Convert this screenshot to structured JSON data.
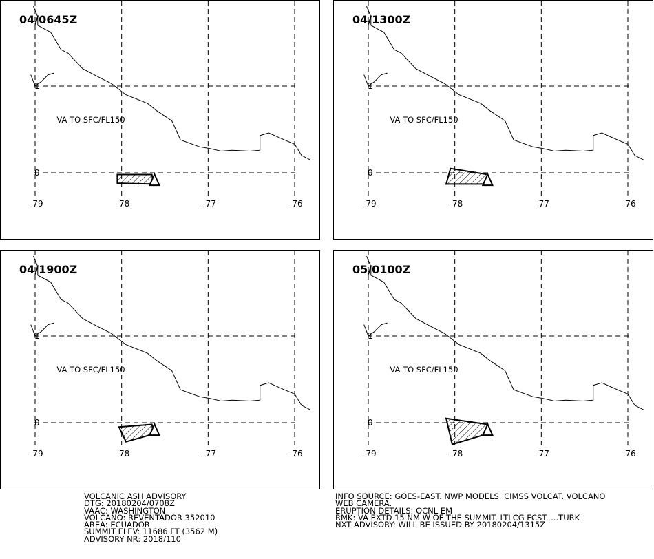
{
  "panels": [
    {
      "valid_time": "04/0645Z",
      "ash_label": "VA TO SFC/FL150",
      "ash_polygon": [
        [
          -78.05,
          -0.02
        ],
        [
          -77.65,
          -0.02
        ],
        [
          -77.63,
          -0.13
        ],
        [
          -78.05,
          -0.12
        ]
      ],
      "volcano_marker": [
        -77.62,
        -0.08
      ]
    },
    {
      "valid_time": "04/1300Z",
      "ash_label": "VA TO SFC/FL150",
      "ash_polygon": [
        [
          -78.05,
          0.05
        ],
        [
          -77.62,
          -0.02
        ],
        [
          -77.63,
          -0.13
        ],
        [
          -78.1,
          -0.13
        ]
      ],
      "volcano_marker": [
        -77.62,
        -0.08
      ]
    },
    {
      "valid_time": "04/1900Z",
      "ash_label": "VA TO SFC/FL150",
      "ash_polygon": [
        [
          -78.03,
          -0.05
        ],
        [
          -77.65,
          -0.02
        ],
        [
          -77.63,
          -0.13
        ],
        [
          -77.95,
          -0.22
        ]
      ],
      "volcano_marker": [
        -77.62,
        -0.08
      ]
    },
    {
      "valid_time": "05/0100Z",
      "ash_label": "VA TO SFC/FL150",
      "ash_polygon": [
        [
          -78.1,
          0.05
        ],
        [
          -77.62,
          -0.02
        ],
        [
          -77.63,
          -0.13
        ],
        [
          -78.03,
          -0.25
        ]
      ],
      "volcano_marker": [
        -77.62,
        -0.08
      ]
    }
  ],
  "map": {
    "lon_ticks": [
      -79,
      -78,
      -77,
      -76
    ],
    "lon_tick_labels": [
      "-79",
      "-78",
      "-77",
      "-76"
    ],
    "lat_ticks": [
      1,
      0
    ],
    "lat_tick_labels": [
      "1",
      "0"
    ],
    "lon_range": [
      -79.2,
      -75.5
    ],
    "lat_range": [
      -0.7,
      1.95
    ],
    "coastline": [
      [
        -79.02,
        1.92
      ],
      [
        -78.97,
        1.8
      ],
      [
        -78.97,
        1.7
      ],
      [
        -78.82,
        1.62
      ],
      [
        -78.7,
        1.42
      ],
      [
        -78.62,
        1.38
      ],
      [
        -78.45,
        1.2
      ],
      [
        -78.22,
        1.08
      ],
      [
        -78.12,
        1.03
      ],
      [
        -77.95,
        0.9
      ],
      [
        -77.7,
        0.8
      ],
      [
        -77.6,
        0.72
      ],
      [
        -77.42,
        0.6
      ],
      [
        -77.32,
        0.38
      ],
      [
        -77.1,
        0.3
      ],
      [
        -76.98,
        0.28
      ],
      [
        -76.85,
        0.25
      ],
      [
        -76.72,
        0.26
      ],
      [
        -76.52,
        0.25
      ],
      [
        -76.4,
        0.26
      ],
      [
        -76.4,
        0.43
      ],
      [
        -76.3,
        0.46
      ],
      [
        -76.12,
        0.38
      ],
      [
        -76.0,
        0.33
      ],
      [
        -75.92,
        0.2
      ],
      [
        -75.82,
        0.15
      ]
    ],
    "coast_spur": [
      [
        -79.05,
        1.13
      ],
      [
        -79.0,
        1.0
      ],
      [
        -78.93,
        1.05
      ],
      [
        -78.85,
        1.13
      ],
      [
        -78.78,
        1.15
      ]
    ],
    "label_anchor": [
      -78.75,
      0.58
    ]
  },
  "advisory": {
    "left_lines": [
      "VOLCANIC ASH ADVISORY",
      "DTG: 20180204/0708Z",
      "VAAC: WASHINGTON",
      "VOLCANO: REVENTADOR 352010",
      "AREA: ECUADOR",
      "SUMMIT ELEV: 11686 FT (3562 M)",
      "ADVISORY NR: 2018/110"
    ],
    "right_lines": [
      "INFO SOURCE: GOES-EAST. NWP MODELS. CIMSS VOLCAT. VOLCANO",
      "WEB CAMERA.",
      "ERUPTION DETAILS: OCNL EM",
      "RMK: VA EXTD 15 NM W OF THE SUMMIT. LTLCG FCST. ...TURK",
      "NXT ADVISORY: WILL BE ISSUED BY 20180204/1315Z"
    ]
  }
}
